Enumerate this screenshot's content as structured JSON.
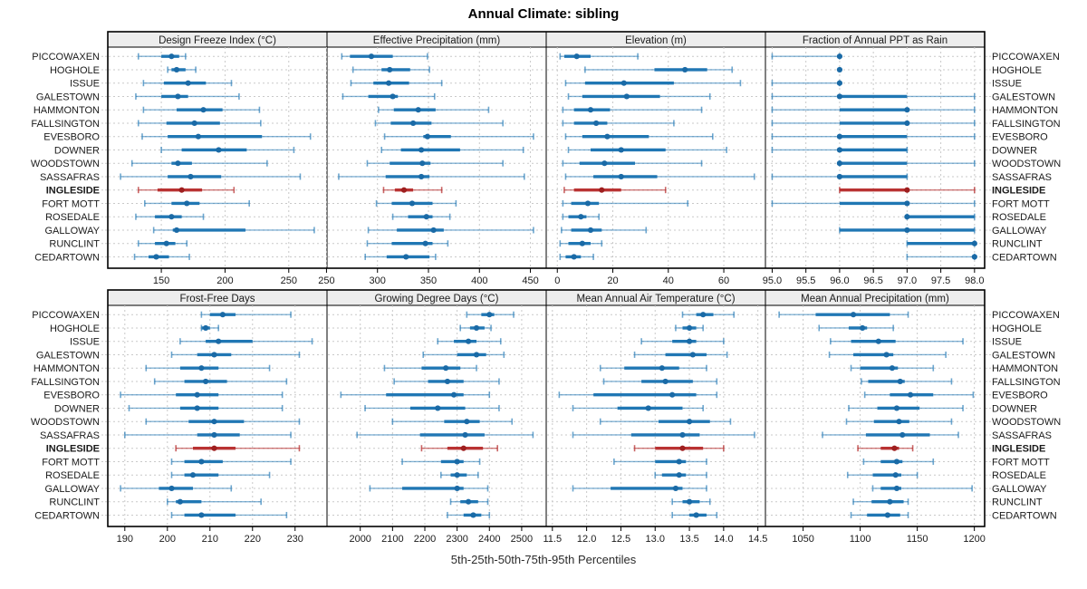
{
  "title": "Annual Climate: sibling",
  "xlabel": "5th-25th-50th-75th-95th Percentiles",
  "colors": {
    "blue_thin": "rgba(31,119,180,0.55)",
    "blue_cap": "rgba(31,119,180,0.65)",
    "blue_thick": "#2077b4",
    "blue_dot": "#1a6aa6",
    "red_thin": "rgba(178,34,34,0.6)",
    "red_cap": "rgba(178,34,34,0.7)",
    "red_thick": "#b93232",
    "red_dot": "#9e1f1f",
    "grid": "#c9c9c9",
    "header_bg": "#ededed",
    "border": "#000000",
    "text": "#1a1a1a"
  },
  "sites": [
    "PICCOWAXEN",
    "HOGHOLE",
    "ISSUE",
    "GALESTOWN",
    "HAMMONTON",
    "FALLSINGTON",
    "EVESBORO",
    "DOWNER",
    "WOODSTOWN",
    "SASSAFRAS",
    "INGLESIDE",
    "FORT MOTT",
    "ROSEDALE",
    "GALLOWAY",
    "RUNCLINT",
    "CEDARTOWN"
  ],
  "highlight_site": "INGLESIDE",
  "chart_data": {
    "type": "percentile-dotplot",
    "percentile_labels": [
      "5th",
      "25th",
      "50th",
      "75th",
      "95th"
    ],
    "legend_position": "none",
    "grid": "dashed",
    "panels": [
      {
        "label": "Design Freeze Index (°C)",
        "xlim": [
          108,
          280
        ],
        "ticks": [
          150,
          200,
          250
        ],
        "tick_decimals": 0,
        "values": [
          [
            132,
            150,
            158,
            164,
            169
          ],
          [
            155,
            158,
            162,
            169,
            177
          ],
          [
            136,
            152,
            171,
            185,
            205
          ],
          [
            130,
            150,
            163,
            171,
            211
          ],
          [
            136,
            162,
            183,
            198,
            227
          ],
          [
            132,
            154,
            176,
            196,
            228
          ],
          [
            135,
            155,
            179,
            229,
            267
          ],
          [
            150,
            166,
            195,
            217,
            254
          ],
          [
            127,
            158,
            163,
            174,
            233
          ],
          [
            118,
            155,
            173,
            197,
            259
          ],
          [
            132,
            147,
            166,
            182,
            207
          ],
          [
            137,
            158,
            170,
            180,
            219
          ],
          [
            130,
            145,
            158,
            166,
            183
          ],
          [
            144,
            159,
            162,
            216,
            270
          ],
          [
            132,
            145,
            154,
            161,
            170
          ],
          [
            129,
            140,
            146,
            156,
            172
          ]
        ]
      },
      {
        "label": "Effective Precipitation (mm)",
        "xlim": [
          250.5,
          465.5
        ],
        "ticks": [
          250,
          300,
          350,
          400,
          450
        ],
        "tick_decimals": 0,
        "values": [
          [
            265,
            273,
            294,
            315,
            349
          ],
          [
            276,
            304,
            312,
            332,
            351
          ],
          [
            274,
            296,
            311,
            331,
            363
          ],
          [
            266,
            291,
            315,
            320,
            356
          ],
          [
            301,
            316,
            340,
            357,
            409
          ],
          [
            298,
            313,
            335,
            353,
            423
          ],
          [
            307,
            345,
            349,
            372,
            453
          ],
          [
            304,
            323,
            343,
            381,
            443
          ],
          [
            290,
            312,
            344,
            352,
            423
          ],
          [
            262,
            308,
            343,
            351,
            444
          ],
          [
            306,
            317,
            326,
            335,
            363
          ],
          [
            299,
            314,
            334,
            354,
            377
          ],
          [
            315,
            330,
            348,
            354,
            371
          ],
          [
            291,
            319,
            355,
            365,
            453
          ],
          [
            290,
            314,
            347,
            354,
            369
          ],
          [
            288,
            309,
            328,
            351,
            357
          ]
        ]
      },
      {
        "label": "Elevation (m)",
        "xlim": [
          -4,
          75
        ],
        "ticks": [
          0,
          20,
          40,
          60
        ],
        "tick_decimals": 0,
        "values": [
          [
            1,
            2.5,
            7,
            12,
            29
          ],
          [
            10,
            35,
            46,
            54,
            63
          ],
          [
            3,
            10,
            24,
            42,
            66
          ],
          [
            4,
            9,
            25,
            37,
            55
          ],
          [
            2,
            6,
            12,
            19,
            52
          ],
          [
            2,
            6,
            14,
            18,
            42
          ],
          [
            3,
            9,
            18,
            33,
            56
          ],
          [
            4,
            12,
            23,
            39,
            61
          ],
          [
            2,
            8,
            17,
            28,
            52
          ],
          [
            3,
            13,
            23,
            36,
            71
          ],
          [
            2.5,
            6,
            16,
            23,
            39
          ],
          [
            2,
            5,
            11,
            15,
            47
          ],
          [
            2,
            4,
            8.5,
            10.5,
            15
          ],
          [
            1.5,
            5,
            12,
            16,
            32
          ],
          [
            1,
            4,
            9,
            12,
            16
          ],
          [
            1,
            3,
            6,
            8.5,
            13
          ]
        ]
      },
      {
        "label": "Fraction of Annual PPT as Rain",
        "xlim": [
          94.9,
          98.15
        ],
        "ticks": [
          95.0,
          95.5,
          96.0,
          96.5,
          97.0,
          97.5,
          98.0
        ],
        "tick_decimals": 1,
        "values": [
          [
            95,
            96,
            96,
            96,
            96
          ],
          [
            96,
            96,
            96,
            96,
            96
          ],
          [
            95,
            96,
            96,
            96,
            96
          ],
          [
            95,
            96,
            96,
            97,
            98
          ],
          [
            95,
            96,
            97,
            97,
            98
          ],
          [
            95,
            96,
            97,
            97,
            98
          ],
          [
            95,
            96,
            96,
            97,
            98
          ],
          [
            95,
            96,
            96,
            97,
            97
          ],
          [
            96,
            96,
            96,
            97,
            98
          ],
          [
            95,
            96,
            96,
            97,
            97
          ],
          [
            96,
            96,
            97,
            97,
            98
          ],
          [
            95,
            96,
            97,
            97,
            98
          ],
          [
            97,
            97,
            97,
            98,
            98
          ],
          [
            96,
            96,
            97,
            98,
            98
          ],
          [
            97,
            97,
            98,
            98,
            98
          ],
          [
            97,
            98,
            98,
            98,
            98
          ]
        ]
      },
      {
        "label": "Frost-Free Days",
        "xlim": [
          186,
          237.5
        ],
        "ticks": [
          190,
          200,
          210,
          220,
          230
        ],
        "tick_decimals": 0,
        "values": [
          [
            208,
            210,
            213,
            216,
            229
          ],
          [
            208,
            208,
            209,
            210,
            212
          ],
          [
            203,
            209,
            212,
            220,
            234
          ],
          [
            201,
            207,
            211,
            215,
            231
          ],
          [
            195,
            203,
            208,
            212,
            224
          ],
          [
            197,
            204,
            209,
            214,
            228
          ],
          [
            189,
            202,
            207,
            212,
            227
          ],
          [
            191,
            203,
            207,
            212,
            227
          ],
          [
            195,
            205,
            211,
            218,
            231
          ],
          [
            190,
            207,
            211,
            217,
            229
          ],
          [
            202,
            206,
            211,
            216,
            231
          ],
          [
            201,
            204,
            208,
            213,
            229
          ],
          [
            201,
            204,
            206,
            212,
            224
          ],
          [
            189,
            198,
            201,
            206,
            215
          ],
          [
            200,
            202,
            203,
            208,
            222
          ],
          [
            201,
            204,
            208,
            216,
            228
          ]
        ]
      },
      {
        "label": "Growing Degree Days (°C)",
        "xlim": [
          1897,
          2576
        ],
        "ticks": [
          2000,
          2100,
          2200,
          2300,
          2400,
          2500
        ],
        "tick_decimals": 0,
        "values": [
          [
            2330,
            2375,
            2400,
            2415,
            2475
          ],
          [
            2310,
            2340,
            2360,
            2385,
            2405
          ],
          [
            2240,
            2290,
            2335,
            2360,
            2435
          ],
          [
            2195,
            2300,
            2360,
            2390,
            2445
          ],
          [
            2075,
            2190,
            2265,
            2310,
            2360
          ],
          [
            2105,
            2210,
            2270,
            2320,
            2430
          ],
          [
            1940,
            2080,
            2290,
            2320,
            2400
          ],
          [
            2015,
            2155,
            2240,
            2325,
            2430
          ],
          [
            2100,
            2260,
            2330,
            2370,
            2470
          ],
          [
            1990,
            2185,
            2325,
            2385,
            2535
          ],
          [
            2190,
            2270,
            2320,
            2380,
            2425
          ],
          [
            2130,
            2250,
            2300,
            2320,
            2370
          ],
          [
            2250,
            2280,
            2300,
            2330,
            2365
          ],
          [
            2030,
            2130,
            2300,
            2320,
            2395
          ],
          [
            2280,
            2310,
            2335,
            2365,
            2395
          ],
          [
            2270,
            2320,
            2350,
            2375,
            2400
          ]
        ]
      },
      {
        "label": "Mean Annual Air Temperature (°C)",
        "xlim": [
          11.41,
          14.61
        ],
        "ticks": [
          11.5,
          12.0,
          12.5,
          13.0,
          13.5,
          14.0,
          14.5
        ],
        "tick_decimals": 1,
        "values": [
          [
            13.4,
            13.6,
            13.7,
            13.85,
            14.15
          ],
          [
            13.3,
            13.4,
            13.5,
            13.6,
            13.7
          ],
          [
            12.8,
            13.25,
            13.5,
            13.6,
            14.0
          ],
          [
            12.7,
            13.15,
            13.55,
            13.75,
            14.05
          ],
          [
            12.2,
            12.55,
            13.1,
            13.35,
            13.75
          ],
          [
            12.25,
            12.8,
            13.15,
            13.55,
            13.9
          ],
          [
            11.6,
            12.1,
            13.25,
            13.6,
            13.9
          ],
          [
            11.8,
            12.45,
            12.9,
            13.4,
            13.7
          ],
          [
            12.2,
            13.05,
            13.5,
            13.8,
            14.1
          ],
          [
            11.8,
            12.65,
            13.4,
            13.65,
            14.45
          ],
          [
            12.7,
            13.0,
            13.4,
            13.7,
            14.0
          ],
          [
            12.4,
            13.0,
            13.35,
            13.45,
            13.75
          ],
          [
            13.0,
            13.1,
            13.35,
            13.45,
            13.75
          ],
          [
            11.8,
            12.35,
            13.3,
            13.4,
            13.75
          ],
          [
            13.25,
            13.4,
            13.5,
            13.65,
            13.8
          ],
          [
            13.25,
            13.5,
            13.6,
            13.75,
            13.9
          ]
        ]
      },
      {
        "label": "Mean Annual Precipitation (mm)",
        "xlim": [
          1017,
          1209
        ],
        "ticks": [
          1050,
          1100,
          1150,
          1200
        ],
        "tick_decimals": 0,
        "values": [
          [
            1029,
            1061,
            1094,
            1126,
            1142
          ],
          [
            1064,
            1090,
            1102,
            1106,
            1129
          ],
          [
            1074,
            1092,
            1116,
            1131,
            1190
          ],
          [
            1073,
            1094,
            1123,
            1129,
            1175
          ],
          [
            1092,
            1100,
            1128,
            1133,
            1164
          ],
          [
            1101,
            1107,
            1135,
            1139,
            1180
          ],
          [
            1104,
            1126,
            1144,
            1164,
            1199
          ],
          [
            1090,
            1115,
            1132,
            1152,
            1190
          ],
          [
            1088,
            1112,
            1134,
            1143,
            1180
          ],
          [
            1067,
            1105,
            1137,
            1161,
            1186
          ],
          [
            1098,
            1118,
            1130,
            1134,
            1146
          ],
          [
            1103,
            1118,
            1132,
            1137,
            1164
          ],
          [
            1089,
            1111,
            1131,
            1136,
            1150
          ],
          [
            1111,
            1118,
            1132,
            1136,
            1198
          ],
          [
            1094,
            1110,
            1126,
            1138,
            1142
          ],
          [
            1092,
            1106,
            1124,
            1135,
            1142
          ]
        ]
      }
    ]
  }
}
